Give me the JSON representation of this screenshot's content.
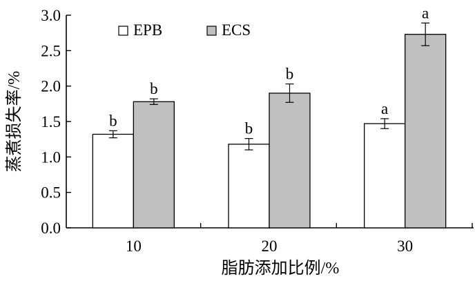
{
  "chart_data": {
    "type": "bar",
    "categories": [
      "10",
      "20",
      "30"
    ],
    "series": [
      {
        "name": "EPB",
        "values": [
          1.32,
          1.18,
          1.47
        ],
        "errors": [
          0.05,
          0.08,
          0.07
        ],
        "labels": [
          "b",
          "b",
          "a"
        ],
        "color": "#ffffff"
      },
      {
        "name": "ECS",
        "values": [
          1.78,
          1.9,
          2.73
        ],
        "errors": [
          0.04,
          0.13,
          0.16
        ],
        "labels": [
          "b",
          "b",
          "a"
        ],
        "color": "#c0c0c0"
      }
    ],
    "xlabel": "脂肪添加比例/%",
    "ylabel": "蒸煮损失率/%",
    "ylim": [
      0,
      3.0
    ],
    "yticks": [
      "0.0",
      "0.5",
      "1.0",
      "1.5",
      "2.0",
      "2.5",
      "3.0"
    ],
    "legend_position": "top-left",
    "grid": false
  }
}
